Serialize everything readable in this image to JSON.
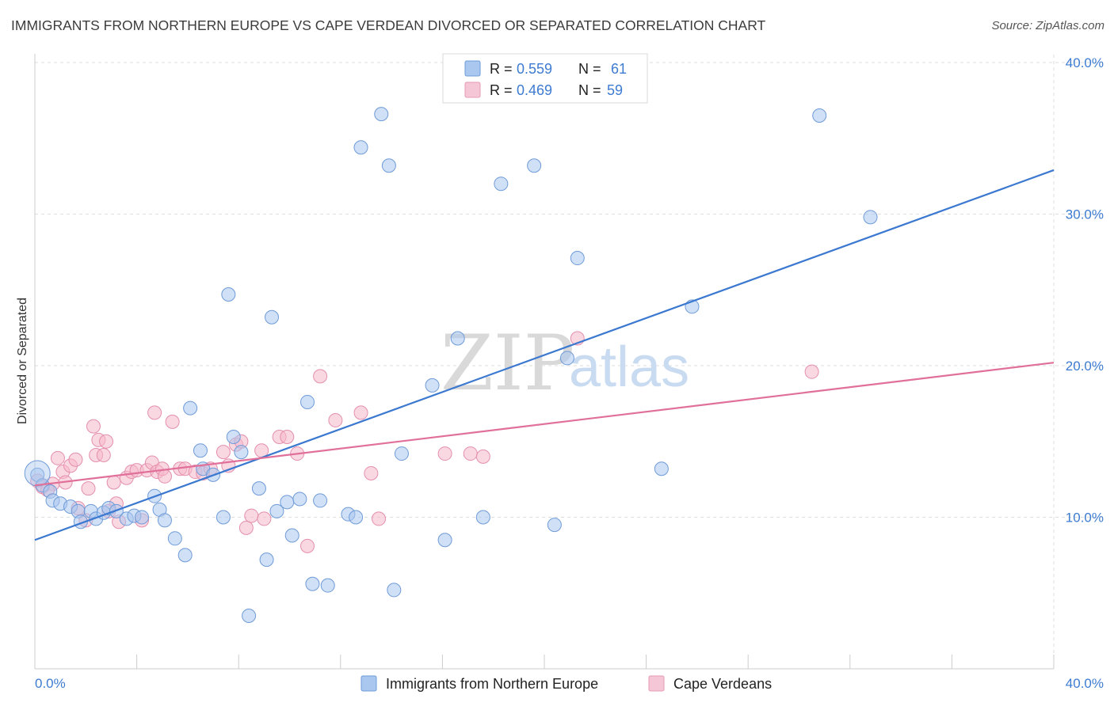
{
  "title": "IMMIGRANTS FROM NORTHERN EUROPE VS CAPE VERDEAN DIVORCED OR SEPARATED CORRELATION CHART",
  "source": "Source: ZipAtlas.com",
  "watermark": {
    "zip": "ZIP",
    "atlas": "atlas"
  },
  "colors": {
    "blue": "#3b78d0",
    "blue_fill": "#a9c7ef",
    "pink": "#e0709a",
    "pink_fill": "#f5b8cb",
    "grid": "#dddddd"
  },
  "legend": {
    "r_label": "R =",
    "n_label": "N =",
    "rows": [
      {
        "r": "0.559",
        "n": "61"
      },
      {
        "r": "0.469",
        "n": "59"
      }
    ]
  },
  "chart_data": {
    "type": "scatter",
    "title": "IMMIGRANTS FROM NORTHERN EUROPE VS CAPE VERDEAN DIVORCED OR SEPARATED CORRELATION CHART",
    "xlabel": "",
    "ylabel": "Divorced or Separated",
    "xlim": [
      0,
      40
    ],
    "ylim": [
      0,
      40
    ],
    "x_ticks": [
      "0.0%",
      "40.0%"
    ],
    "y_ticks": [
      "10.0%",
      "20.0%",
      "30.0%",
      "40.0%"
    ],
    "y_tick_values": [
      10,
      20,
      30,
      40
    ],
    "grid": true,
    "legend_position": "bottom",
    "series": [
      {
        "name": "Immigrants from Northern Europe",
        "color": "#3b78d0",
        "trend": {
          "x": [
            0,
            40
          ],
          "y": [
            8.5,
            32.9
          ]
        },
        "points": [
          [
            0.1,
            12.8
          ],
          [
            0.3,
            12.1
          ],
          [
            0.6,
            11.7
          ],
          [
            0.7,
            11.1
          ],
          [
            1.0,
            10.9
          ],
          [
            1.4,
            10.7
          ],
          [
            1.7,
            10.4
          ],
          [
            1.8,
            9.7
          ],
          [
            2.2,
            10.4
          ],
          [
            2.4,
            9.9
          ],
          [
            2.7,
            10.3
          ],
          [
            2.9,
            10.6
          ],
          [
            3.2,
            10.4
          ],
          [
            3.6,
            9.9
          ],
          [
            3.9,
            10.1
          ],
          [
            4.2,
            10.0
          ],
          [
            4.7,
            11.4
          ],
          [
            4.9,
            10.5
          ],
          [
            5.1,
            9.8
          ],
          [
            5.5,
            8.6
          ],
          [
            5.9,
            7.5
          ],
          [
            6.1,
            17.2
          ],
          [
            6.5,
            14.4
          ],
          [
            6.6,
            13.2
          ],
          [
            7.0,
            12.8
          ],
          [
            7.4,
            10.0
          ],
          [
            7.6,
            24.7
          ],
          [
            7.8,
            15.3
          ],
          [
            8.1,
            14.3
          ],
          [
            8.4,
            3.5
          ],
          [
            8.8,
            11.9
          ],
          [
            9.1,
            7.2
          ],
          [
            9.3,
            23.2
          ],
          [
            9.5,
            10.4
          ],
          [
            9.9,
            11.0
          ],
          [
            10.1,
            8.8
          ],
          [
            10.4,
            11.2
          ],
          [
            10.7,
            17.6
          ],
          [
            10.9,
            5.6
          ],
          [
            11.2,
            11.1
          ],
          [
            11.5,
            5.5
          ],
          [
            12.3,
            10.2
          ],
          [
            12.6,
            10.0
          ],
          [
            12.8,
            34.4
          ],
          [
            13.6,
            36.6
          ],
          [
            13.9,
            33.2
          ],
          [
            14.1,
            5.2
          ],
          [
            14.4,
            14.2
          ],
          [
            15.6,
            18.7
          ],
          [
            16.1,
            8.5
          ],
          [
            16.6,
            21.8
          ],
          [
            17.6,
            10.0
          ],
          [
            18.3,
            32.0
          ],
          [
            19.6,
            33.2
          ],
          [
            20.4,
            9.5
          ],
          [
            20.9,
            20.5
          ],
          [
            21.3,
            27.1
          ],
          [
            24.6,
            13.2
          ],
          [
            25.8,
            23.9
          ],
          [
            30.8,
            36.5
          ],
          [
            32.8,
            29.8
          ]
        ]
      },
      {
        "name": "Cape Verdeans",
        "color": "#e0709a",
        "trend": {
          "x": [
            0,
            40
          ],
          "y": [
            12.1,
            20.2
          ]
        },
        "points": [
          [
            0.1,
            12.4
          ],
          [
            0.3,
            12.0
          ],
          [
            0.7,
            12.2
          ],
          [
            0.9,
            13.9
          ],
          [
            1.1,
            13.0
          ],
          [
            1.2,
            12.3
          ],
          [
            1.4,
            13.4
          ],
          [
            1.6,
            13.8
          ],
          [
            1.7,
            10.6
          ],
          [
            2.0,
            9.8
          ],
          [
            2.1,
            11.9
          ],
          [
            2.3,
            16.0
          ],
          [
            2.4,
            14.1
          ],
          [
            2.5,
            15.1
          ],
          [
            2.7,
            14.1
          ],
          [
            2.8,
            15.0
          ],
          [
            3.1,
            12.3
          ],
          [
            3.2,
            10.9
          ],
          [
            3.3,
            9.7
          ],
          [
            3.6,
            12.6
          ],
          [
            3.8,
            13.0
          ],
          [
            4.0,
            13.1
          ],
          [
            4.2,
            9.8
          ],
          [
            4.4,
            13.1
          ],
          [
            4.6,
            13.6
          ],
          [
            4.7,
            16.9
          ],
          [
            4.8,
            13.0
          ],
          [
            5.0,
            13.2
          ],
          [
            5.1,
            12.7
          ],
          [
            5.4,
            16.3
          ],
          [
            5.7,
            13.2
          ],
          [
            5.9,
            13.2
          ],
          [
            6.3,
            13.0
          ],
          [
            6.6,
            12.9
          ],
          [
            6.9,
            13.2
          ],
          [
            7.4,
            14.3
          ],
          [
            7.6,
            13.4
          ],
          [
            7.9,
            14.8
          ],
          [
            8.1,
            15.0
          ],
          [
            8.3,
            9.3
          ],
          [
            8.5,
            10.1
          ],
          [
            8.9,
            14.4
          ],
          [
            9.0,
            9.9
          ],
          [
            9.6,
            15.3
          ],
          [
            9.9,
            15.3
          ],
          [
            10.3,
            14.2
          ],
          [
            10.7,
            8.1
          ],
          [
            11.2,
            19.3
          ],
          [
            11.8,
            16.4
          ],
          [
            12.8,
            16.9
          ],
          [
            13.2,
            12.9
          ],
          [
            13.5,
            9.9
          ],
          [
            16.1,
            14.2
          ],
          [
            17.1,
            14.2
          ],
          [
            17.6,
            14.0
          ],
          [
            21.3,
            21.8
          ],
          [
            30.5,
            19.6
          ],
          [
            0.5,
            11.8
          ],
          [
            2.9,
            10.4
          ]
        ]
      }
    ]
  }
}
